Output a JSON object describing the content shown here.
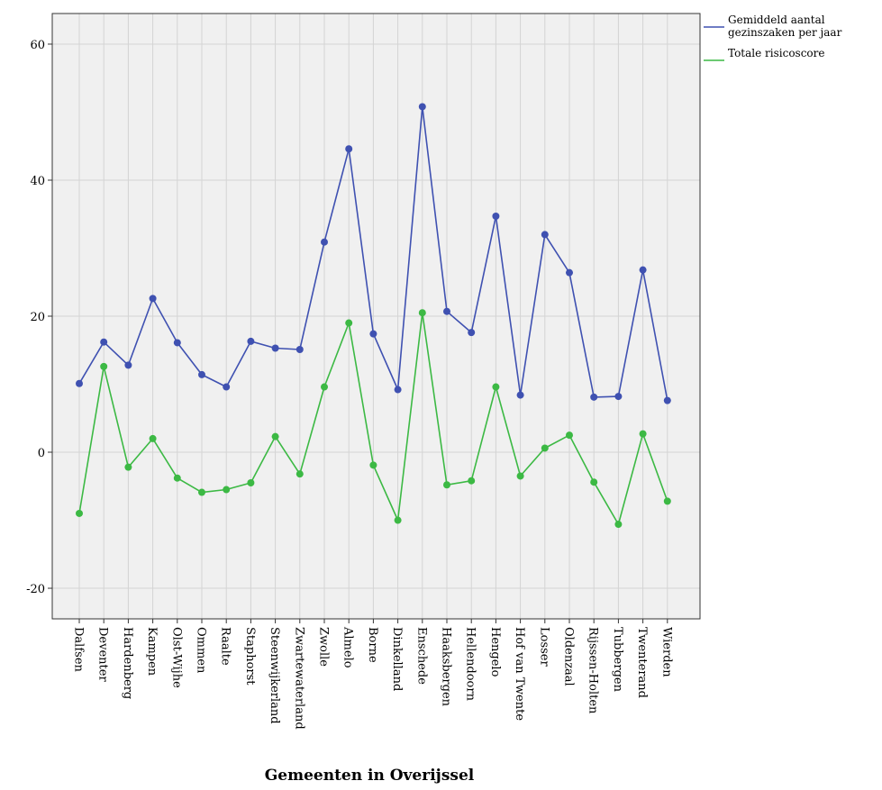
{
  "chart_data": {
    "type": "line",
    "title": "",
    "xlabel": "Gemeenten in Overijssel",
    "ylabel": "",
    "ylim": [
      -24.5,
      64.5
    ],
    "yticks": [
      -20,
      0,
      20,
      40,
      60
    ],
    "grid": true,
    "legend_position": "top-right",
    "categories": [
      "Dalfsen",
      "Deventer",
      "Hardenberg",
      "Kampen",
      "Olst-Wijhe",
      "Ommen",
      "Raalte",
      "Staphorst",
      "Steenwijkerland",
      "Zwartewaterland",
      "Zwolle",
      "Almelo",
      "Borne",
      "Dinkelland",
      "Enschede",
      "Haaksbergen",
      "Hellendoorn",
      "Hengelo",
      "Hof van Twente",
      "Losser",
      "Oldenzaal",
      "Rijssen-Holten",
      "Tubbergen",
      "Twenterand",
      "Wierden"
    ],
    "series": [
      {
        "name": "Gemiddeld aantal gezinszaken per jaar",
        "legend_lines": [
          "Gemiddeld aantal",
          "gezinszaken per jaar"
        ],
        "color": "#3f51b1",
        "values": [
          10.1,
          16.2,
          12.8,
          22.6,
          16.1,
          11.4,
          9.6,
          16.3,
          15.3,
          15.1,
          30.9,
          44.6,
          17.4,
          9.2,
          50.8,
          20.7,
          17.6,
          34.7,
          8.4,
          32.0,
          26.4,
          8.1,
          8.2,
          26.8,
          7.6
        ]
      },
      {
        "name": "Totale risicoscore",
        "legend_lines": [
          "Totale risicoscore"
        ],
        "color": "#3cb944",
        "values": [
          -9.0,
          12.6,
          -2.2,
          2.0,
          -3.8,
          -5.9,
          -5.5,
          -4.5,
          2.3,
          -3.2,
          9.6,
          19.0,
          -1.9,
          -10.0,
          20.5,
          -4.8,
          -4.2,
          9.6,
          -3.5,
          0.6,
          2.5,
          -4.4,
          -10.6,
          2.7,
          -7.2
        ]
      }
    ]
  }
}
